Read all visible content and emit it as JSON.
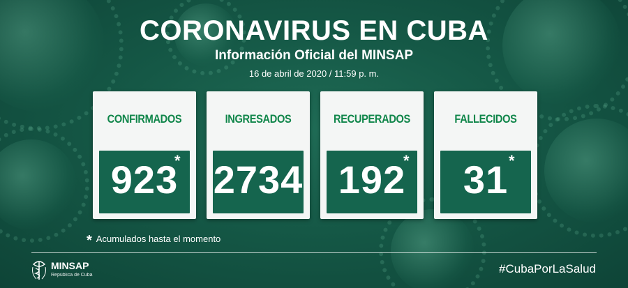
{
  "header": {
    "title": "CORONAVIRUS EN CUBA",
    "subtitle": "Información Oficial del MINSAP",
    "date": "16 de abril de 2020 / 11:59 p. m."
  },
  "cards": [
    {
      "label": "CONFIRMADOS",
      "value": "923",
      "asterisk": "*"
    },
    {
      "label": "INGRESADOS",
      "value": "2734",
      "asterisk": ""
    },
    {
      "label": "RECUPERADOS",
      "value": "192",
      "asterisk": "*"
    },
    {
      "label": "FALLECIDOS",
      "value": "31",
      "asterisk": "*"
    }
  ],
  "footnote": {
    "star": "*",
    "text": "Acumulados hasta el momento"
  },
  "footer": {
    "logo_name": "MINSAP",
    "logo_sub": "República de Cuba",
    "hashtag": "#CubaPorLaSalud"
  },
  "colors": {
    "background": "#155846",
    "card_label": "#10864a",
    "value_box": "#15654e"
  }
}
